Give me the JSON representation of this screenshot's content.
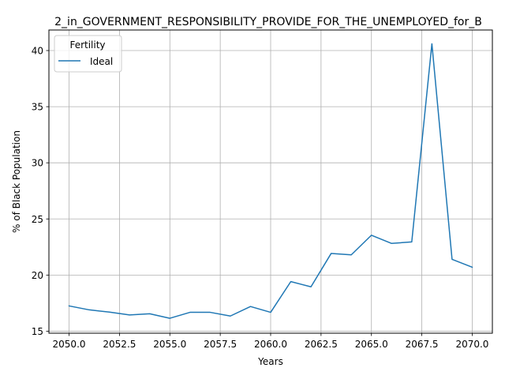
{
  "chart_data": {
    "type": "line",
    "title": "2_in_GOVERNMENT_RESPONSIBILITY_PROVIDE_FOR_THE_UNEMPLOYED_for_B",
    "xlabel": "Years",
    "ylabel": "% of Black Population",
    "xlim": [
      2049.0,
      2071.0
    ],
    "ylim": [
      14.82,
      41.83
    ],
    "xticks": [
      2050.0,
      2052.5,
      2055.0,
      2057.5,
      2060.0,
      2062.5,
      2065.0,
      2067.5,
      2070.0
    ],
    "xtick_labels": [
      "2050.0",
      "2052.5",
      "2055.0",
      "2057.5",
      "2060.0",
      "2062.5",
      "2065.0",
      "2067.5",
      "2070.0"
    ],
    "yticks": [
      15,
      20,
      25,
      30,
      35,
      40
    ],
    "ytick_labels": [
      "15",
      "20",
      "25",
      "30",
      "35",
      "40"
    ],
    "grid": true,
    "legend": {
      "title": "Fertility",
      "placement": "top-left"
    },
    "x": [
      2050,
      2051,
      2052,
      2053,
      2054,
      2055,
      2056,
      2057,
      2058,
      2059,
      2060,
      2061,
      2062,
      2063,
      2064,
      2065,
      2066,
      2067,
      2068,
      2069,
      2070
    ],
    "series": [
      {
        "name": "Ideal",
        "color": "#1f77b4",
        "values": [
          17.25,
          16.9,
          16.7,
          16.45,
          16.55,
          16.15,
          16.68,
          16.68,
          16.35,
          17.2,
          16.68,
          19.42,
          18.95,
          21.92,
          21.8,
          23.55,
          22.82,
          22.95,
          40.6,
          21.4,
          20.7
        ]
      }
    ]
  }
}
